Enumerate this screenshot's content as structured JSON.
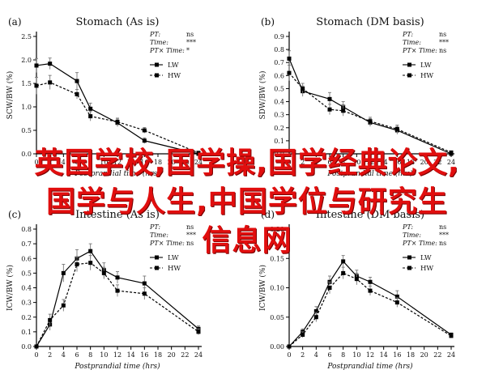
{
  "chart_data": [
    {
      "panel": "a",
      "type": "line",
      "title": "Stomach (As is)",
      "xlabel": "Postprandial time (hrs)",
      "ylabel": "SCW/BW (%)",
      "xlim": [
        0,
        24
      ],
      "ylim": [
        0,
        2.5
      ],
      "xticks": [
        "0",
        "2",
        "4",
        "6",
        "8",
        "10",
        "12",
        "14",
        "16",
        "18",
        "20",
        "22",
        "24"
      ],
      "yticks": [
        "0.0",
        "0.5",
        "1.0",
        "1.5",
        "2.0",
        "2.5"
      ],
      "stats": [
        [
          "PT:",
          "ns"
        ],
        [
          "Time:",
          "***"
        ],
        [
          "PT× Time:",
          "*"
        ]
      ],
      "series": [
        {
          "name": "LW",
          "style": "solid",
          "x": [
            0,
            2,
            6,
            8,
            12,
            16,
            24
          ],
          "y": [
            1.88,
            1.92,
            1.55,
            0.96,
            0.66,
            0.28,
            0.0
          ],
          "err": [
            0.15,
            0.12,
            0.18,
            0.12,
            0.08,
            0.06,
            0.02
          ]
        },
        {
          "name": "HW",
          "style": "dashed",
          "x": [
            0,
            2,
            6,
            8,
            12,
            16,
            24
          ],
          "y": [
            1.45,
            1.52,
            1.27,
            0.8,
            0.68,
            0.5,
            0.02
          ],
          "err": [
            0.18,
            0.15,
            0.1,
            0.1,
            0.08,
            0.06,
            0.02
          ]
        }
      ]
    },
    {
      "panel": "b",
      "type": "line",
      "title": "Stomach (DM basis)",
      "xlabel": "Postprandial time (hrs)",
      "ylabel": "SDW/BW (%)",
      "xlim": [
        0,
        24
      ],
      "ylim": [
        0,
        0.9
      ],
      "xticks": [
        "0",
        "2",
        "4",
        "6",
        "8",
        "10",
        "12",
        "14",
        "16",
        "18",
        "20",
        "22",
        "24"
      ],
      "yticks": [
        "0.0",
        "0.1",
        "0.2",
        "0.3",
        "0.4",
        "0.5",
        "0.6",
        "0.7",
        "0.8",
        "0.9"
      ],
      "stats": [
        [
          "PT:",
          "ns"
        ],
        [
          "Time:",
          "***"
        ],
        [
          "PT× Time:",
          "ns"
        ]
      ],
      "series": [
        {
          "name": "LW",
          "style": "solid",
          "x": [
            0,
            2,
            6,
            8,
            12,
            16,
            24
          ],
          "y": [
            0.73,
            0.48,
            0.42,
            0.36,
            0.24,
            0.18,
            0.0
          ],
          "err": [
            0.06,
            0.04,
            0.05,
            0.04,
            0.03,
            0.03,
            0.01
          ]
        },
        {
          "name": "HW",
          "style": "dashed",
          "x": [
            0,
            2,
            6,
            8,
            12,
            16,
            24
          ],
          "y": [
            0.62,
            0.5,
            0.34,
            0.33,
            0.25,
            0.19,
            0.01
          ],
          "err": [
            0.06,
            0.04,
            0.04,
            0.04,
            0.03,
            0.03,
            0.01
          ]
        }
      ]
    },
    {
      "panel": "c",
      "type": "line",
      "title": "Intestine (As is)",
      "xlabel": "Postprandial time (hrs)",
      "ylabel": "ICW/BW (%)",
      "xlim": [
        0,
        24
      ],
      "ylim": [
        0,
        0.8
      ],
      "xticks": [
        "0",
        "2",
        "4",
        "6",
        "8",
        "10",
        "12",
        "14",
        "16",
        "18",
        "20",
        "22",
        "24"
      ],
      "yticks": [
        "0.0",
        "0.1",
        "0.2",
        "0.3",
        "0.4",
        "0.5",
        "0.6",
        "0.7",
        "0.8"
      ],
      "stats": [
        [
          "PT:",
          "ns"
        ],
        [
          "Time:",
          "***"
        ],
        [
          "PT× Time:",
          "ns"
        ]
      ],
      "series": [
        {
          "name": "LW",
          "style": "solid",
          "x": [
            0,
            2,
            4,
            6,
            8,
            10,
            12,
            16,
            24
          ],
          "y": [
            0.0,
            0.15,
            0.5,
            0.6,
            0.65,
            0.52,
            0.47,
            0.43,
            0.12
          ],
          "err": [
            0.01,
            0.04,
            0.06,
            0.06,
            0.05,
            0.05,
            0.04,
            0.05,
            0.02
          ]
        },
        {
          "name": "HW",
          "style": "dashed",
          "x": [
            0,
            2,
            4,
            6,
            8,
            10,
            12,
            16,
            24
          ],
          "y": [
            0.0,
            0.18,
            0.28,
            0.56,
            0.57,
            0.5,
            0.38,
            0.36,
            0.1
          ],
          "err": [
            0.01,
            0.04,
            0.04,
            0.05,
            0.05,
            0.04,
            0.04,
            0.04,
            0.02
          ]
        }
      ]
    },
    {
      "panel": "d",
      "type": "line",
      "title": "Intestine (DM basis)",
      "xlabel": "Postprandial time (hrs)",
      "ylabel": "ICW/BW (%)",
      "xlim": [
        0,
        24
      ],
      "ylim": [
        0,
        0.2
      ],
      "xticks": [
        "0",
        "2",
        "4",
        "6",
        "8",
        "10",
        "12",
        "14",
        "16",
        "18",
        "20",
        "22",
        "24"
      ],
      "yticks": [
        "0.00",
        "0.05",
        "0.10",
        "0.15",
        "0.20"
      ],
      "stats": [
        [
          "PT:",
          "ns"
        ],
        [
          "Time:",
          "***"
        ],
        [
          "PT× Time:",
          "ns"
        ]
      ],
      "series": [
        {
          "name": "LW",
          "style": "solid",
          "x": [
            0,
            2,
            4,
            6,
            8,
            10,
            12,
            16,
            24
          ],
          "y": [
            0.0,
            0.025,
            0.06,
            0.11,
            0.145,
            0.12,
            0.11,
            0.085,
            0.02
          ],
          "err": [
            0.002,
            0.005,
            0.008,
            0.01,
            0.01,
            0.01,
            0.008,
            0.01,
            0.003
          ]
        },
        {
          "name": "HW",
          "style": "dashed",
          "x": [
            0,
            2,
            4,
            6,
            8,
            10,
            12,
            16,
            24
          ],
          "y": [
            0.0,
            0.02,
            0.05,
            0.1,
            0.125,
            0.115,
            0.095,
            0.075,
            0.018
          ],
          "err": [
            0.002,
            0.005,
            0.008,
            0.01,
            0.01,
            0.01,
            0.008,
            0.008,
            0.003
          ]
        }
      ]
    }
  ],
  "overlay_text": "英国学校,国学操,国学经典论文,国学与人生,中国学位与研究生信息网"
}
